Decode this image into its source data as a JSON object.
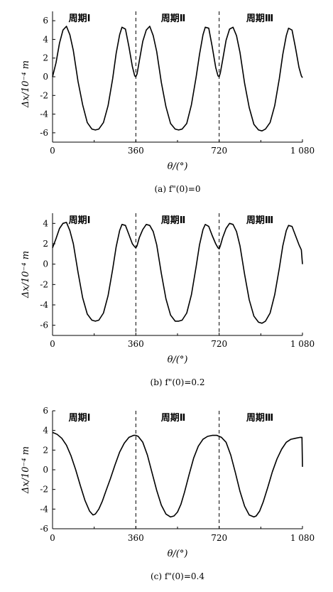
{
  "chart_data": [
    {
      "type": "line",
      "caption": "(a) f\"(0)=0",
      "xlabel": "θ/(°)",
      "ylabel": "Δx/10⁻⁴ m",
      "xlim": [
        0,
        1080
      ],
      "ylim": [
        -7,
        7
      ],
      "xticks": [
        "0",
        "360",
        "720",
        "1 080"
      ],
      "xtick_values": [
        0,
        360,
        720,
        1080
      ],
      "yticks": [
        "-6",
        "-4",
        "-2",
        "0",
        "2",
        "4",
        "6"
      ],
      "ytick_values": [
        -6,
        -4,
        -2,
        0,
        2,
        4,
        6
      ],
      "period_labels": [
        "周期Ⅰ",
        "周期Ⅱ",
        "周期Ⅲ"
      ],
      "dividers": [
        360,
        720
      ],
      "series": [
        {
          "x": [
            0,
            15,
            30,
            45,
            60,
            75,
            90,
            110,
            130,
            150,
            170,
            185,
            200,
            220,
            240,
            260,
            275,
            290,
            300,
            315,
            330,
            345,
            355,
            360,
            365,
            375,
            390,
            405,
            420,
            435,
            450,
            470,
            490,
            510,
            530,
            545,
            560,
            580,
            600,
            620,
            635,
            650,
            660,
            675,
            690,
            705,
            715,
            720,
            725,
            735,
            750,
            765,
            780,
            795,
            810,
            830,
            850,
            870,
            890,
            905,
            920,
            940,
            960,
            980,
            995,
            1010,
            1020,
            1035,
            1050,
            1065,
            1075,
            1080
          ],
          "y": [
            0,
            1.5,
            3.6,
            5.0,
            5.4,
            4.5,
            2.8,
            -0.5,
            -3.0,
            -4.9,
            -5.6,
            -5.7,
            -5.6,
            -4.9,
            -3.1,
            -0.2,
            2.5,
            4.5,
            5.3,
            5.1,
            3.2,
            1.1,
            0.1,
            0,
            0.3,
            1.7,
            3.8,
            5.0,
            5.4,
            4.4,
            2.7,
            -0.6,
            -3.2,
            -5.0,
            -5.6,
            -5.7,
            -5.6,
            -5.0,
            -3.0,
            -0.1,
            2.4,
            4.5,
            5.3,
            5.2,
            3.2,
            1.0,
            0.1,
            0,
            0.4,
            1.8,
            3.9,
            5.1,
            5.3,
            4.4,
            2.6,
            -0.7,
            -3.3,
            -5.1,
            -5.7,
            -5.8,
            -5.6,
            -4.9,
            -3.1,
            -0.2,
            2.4,
            4.4,
            5.2,
            5.0,
            3.1,
            1.0,
            0.1,
            -0.1
          ]
        }
      ]
    },
    {
      "type": "line",
      "caption": "(b) f\"(0)=0.2",
      "xlabel": "θ/(°)",
      "ylabel": "Δx/10⁻⁴ m",
      "xlim": [
        0,
        1080
      ],
      "ylim": [
        -7,
        5
      ],
      "xticks": [
        "0",
        "360",
        "720",
        "1 080"
      ],
      "xtick_values": [
        0,
        360,
        720,
        1080
      ],
      "yticks": [
        "-6",
        "-4",
        "-2",
        "0",
        "2",
        "4"
      ],
      "ytick_values": [
        -6,
        -4,
        -2,
        0,
        2,
        4
      ],
      "period_labels": [
        "周期Ⅰ",
        "周期Ⅱ",
        "周期Ⅲ"
      ],
      "dividers": [
        360,
        720
      ],
      "series": [
        {
          "x": [
            0,
            15,
            30,
            45,
            60,
            75,
            90,
            110,
            130,
            150,
            170,
            185,
            200,
            220,
            240,
            260,
            275,
            290,
            300,
            315,
            330,
            345,
            355,
            360,
            365,
            375,
            390,
            405,
            420,
            435,
            450,
            470,
            490,
            510,
            530,
            545,
            560,
            580,
            600,
            620,
            635,
            650,
            660,
            675,
            690,
            705,
            715,
            720,
            725,
            735,
            750,
            765,
            780,
            795,
            810,
            830,
            850,
            870,
            890,
            905,
            920,
            940,
            960,
            980,
            995,
            1010,
            1020,
            1035,
            1050,
            1065,
            1075,
            1080
          ],
          "y": [
            1.6,
            2.5,
            3.5,
            4.0,
            4.1,
            3.3,
            2.0,
            -0.8,
            -3.3,
            -4.9,
            -5.5,
            -5.6,
            -5.5,
            -4.8,
            -3.1,
            -0.5,
            1.7,
            3.3,
            3.9,
            3.8,
            2.9,
            2.0,
            1.7,
            1.6,
            1.8,
            2.6,
            3.4,
            3.9,
            3.8,
            3.2,
            1.9,
            -0.9,
            -3.4,
            -5.0,
            -5.6,
            -5.6,
            -5.5,
            -4.8,
            -3.0,
            -0.3,
            1.9,
            3.4,
            3.9,
            3.7,
            2.8,
            2.0,
            1.6,
            1.5,
            1.8,
            2.6,
            3.5,
            4.0,
            3.9,
            3.2,
            1.8,
            -1.0,
            -3.5,
            -5.1,
            -5.7,
            -5.8,
            -5.6,
            -4.8,
            -3.0,
            -0.4,
            1.8,
            3.3,
            3.8,
            3.7,
            2.8,
            1.9,
            1.4,
            0
          ]
        }
      ]
    },
    {
      "type": "line",
      "caption": "(c) f\"(0)=0.4",
      "xlabel": "θ/(°)",
      "ylabel": "Δx/10⁻⁴ m",
      "xlim": [
        0,
        1080
      ],
      "ylim": [
        -6,
        6
      ],
      "xticks": [
        "0",
        "360",
        "720",
        "1 080"
      ],
      "xtick_values": [
        0,
        360,
        720,
        1080
      ],
      "yticks": [
        "-6",
        "-4",
        "-2",
        "0",
        "2",
        "4",
        "6"
      ],
      "ytick_values": [
        -6,
        -4,
        -2,
        0,
        2,
        4,
        6
      ],
      "period_labels": [
        "周期Ⅰ",
        "周期Ⅱ",
        "周期Ⅲ"
      ],
      "dividers": [
        360,
        720
      ],
      "series": [
        {
          "x": [
            0,
            20,
            40,
            60,
            80,
            100,
            120,
            140,
            160,
            175,
            185,
            200,
            215,
            230,
            250,
            270,
            290,
            310,
            330,
            350,
            360,
            370,
            390,
            410,
            430,
            450,
            470,
            490,
            510,
            525,
            540,
            555,
            570,
            590,
            610,
            630,
            650,
            670,
            690,
            710,
            720,
            730,
            750,
            770,
            790,
            810,
            830,
            850,
            870,
            880,
            895,
            910,
            930,
            950,
            970,
            990,
            1010,
            1030,
            1050,
            1070,
            1078,
            1080
          ],
          "y": [
            3.8,
            3.6,
            3.2,
            2.5,
            1.4,
            0,
            -1.6,
            -3.1,
            -4.2,
            -4.6,
            -4.5,
            -4.0,
            -3.2,
            -2.2,
            -0.9,
            0.5,
            1.8,
            2.7,
            3.3,
            3.5,
            3.5,
            3.4,
            2.8,
            1.5,
            -0.3,
            -2.1,
            -3.6,
            -4.5,
            -4.8,
            -4.7,
            -4.3,
            -3.5,
            -2.3,
            -0.5,
            1.2,
            2.4,
            3.1,
            3.4,
            3.5,
            3.5,
            3.4,
            3.3,
            2.8,
            1.5,
            -0.3,
            -2.2,
            -3.7,
            -4.6,
            -4.8,
            -4.7,
            -4.2,
            -3.3,
            -1.8,
            -0.2,
            1.1,
            2.1,
            2.8,
            3.1,
            3.2,
            3.3,
            3.3,
            0.3
          ]
        }
      ]
    }
  ]
}
